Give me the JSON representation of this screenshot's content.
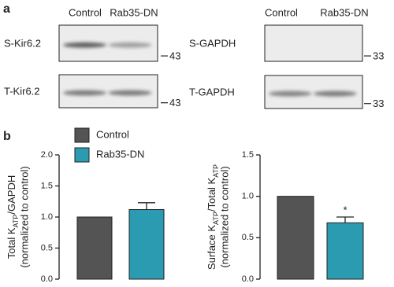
{
  "panel_a": {
    "label": "a",
    "groups": [
      {
        "headers": [
          "Control",
          "Rab35-DN"
        ],
        "rows": [
          {
            "label": "S-Kir6.2",
            "marker": "43"
          },
          {
            "label": "T-Kir6.2",
            "marker": "43"
          }
        ]
      },
      {
        "headers": [
          "Control",
          "Rab35-DN"
        ],
        "rows": [
          {
            "label": "S-GAPDH",
            "marker": "33"
          },
          {
            "label": "T-GAPDH",
            "marker": "33"
          }
        ]
      }
    ]
  },
  "panel_b": {
    "label": "b"
  },
  "chart_data": [
    {
      "type": "bar",
      "ylabel": [
        {
          "text": "Total K"
        },
        {
          "text": "ATP",
          "sub": true
        },
        {
          "text": "/GAPDH"
        }
      ],
      "ylabel2": "(normalized to control)",
      "ylim": [
        0,
        2
      ],
      "yticks": [
        {
          "value": 0,
          "label": "0.0"
        },
        {
          "value": 0.5,
          "label": "0.5"
        },
        {
          "value": 1,
          "label": "1.0"
        },
        {
          "value": 1.5,
          "label": "1.5"
        },
        {
          "value": 2,
          "label": "2.0"
        }
      ],
      "legend": "top-left",
      "series": [
        {
          "name": "Control",
          "color": "#545454",
          "values": [
            1.0
          ]
        },
        {
          "name": "Rab35-DN",
          "color": "#2a9bb1",
          "values": [
            1.12
          ],
          "errors": [
            0.11
          ]
        }
      ]
    },
    {
      "type": "bar",
      "ylabel": [
        {
          "text": "Surface K"
        },
        {
          "text": "ATP",
          "sub": true
        },
        {
          "text": "/Total K"
        },
        {
          "text": "ATP",
          "sub": true
        }
      ],
      "ylabel2": "(normalized to control)",
      "ylim": [
        0,
        1.5
      ],
      "yticks": [
        {
          "value": 0,
          "label": "0.0"
        },
        {
          "value": 0.5,
          "label": "0.5"
        },
        {
          "value": 1,
          "label": "1.0"
        },
        {
          "value": 1.5,
          "label": "1.5"
        }
      ],
      "series": [
        {
          "color": "#545454",
          "values": [
            1.0
          ]
        },
        {
          "color": "#2a9bb1",
          "values": [
            0.68
          ],
          "errors": [
            0.07
          ],
          "annotations": [
            "*"
          ]
        }
      ]
    }
  ]
}
